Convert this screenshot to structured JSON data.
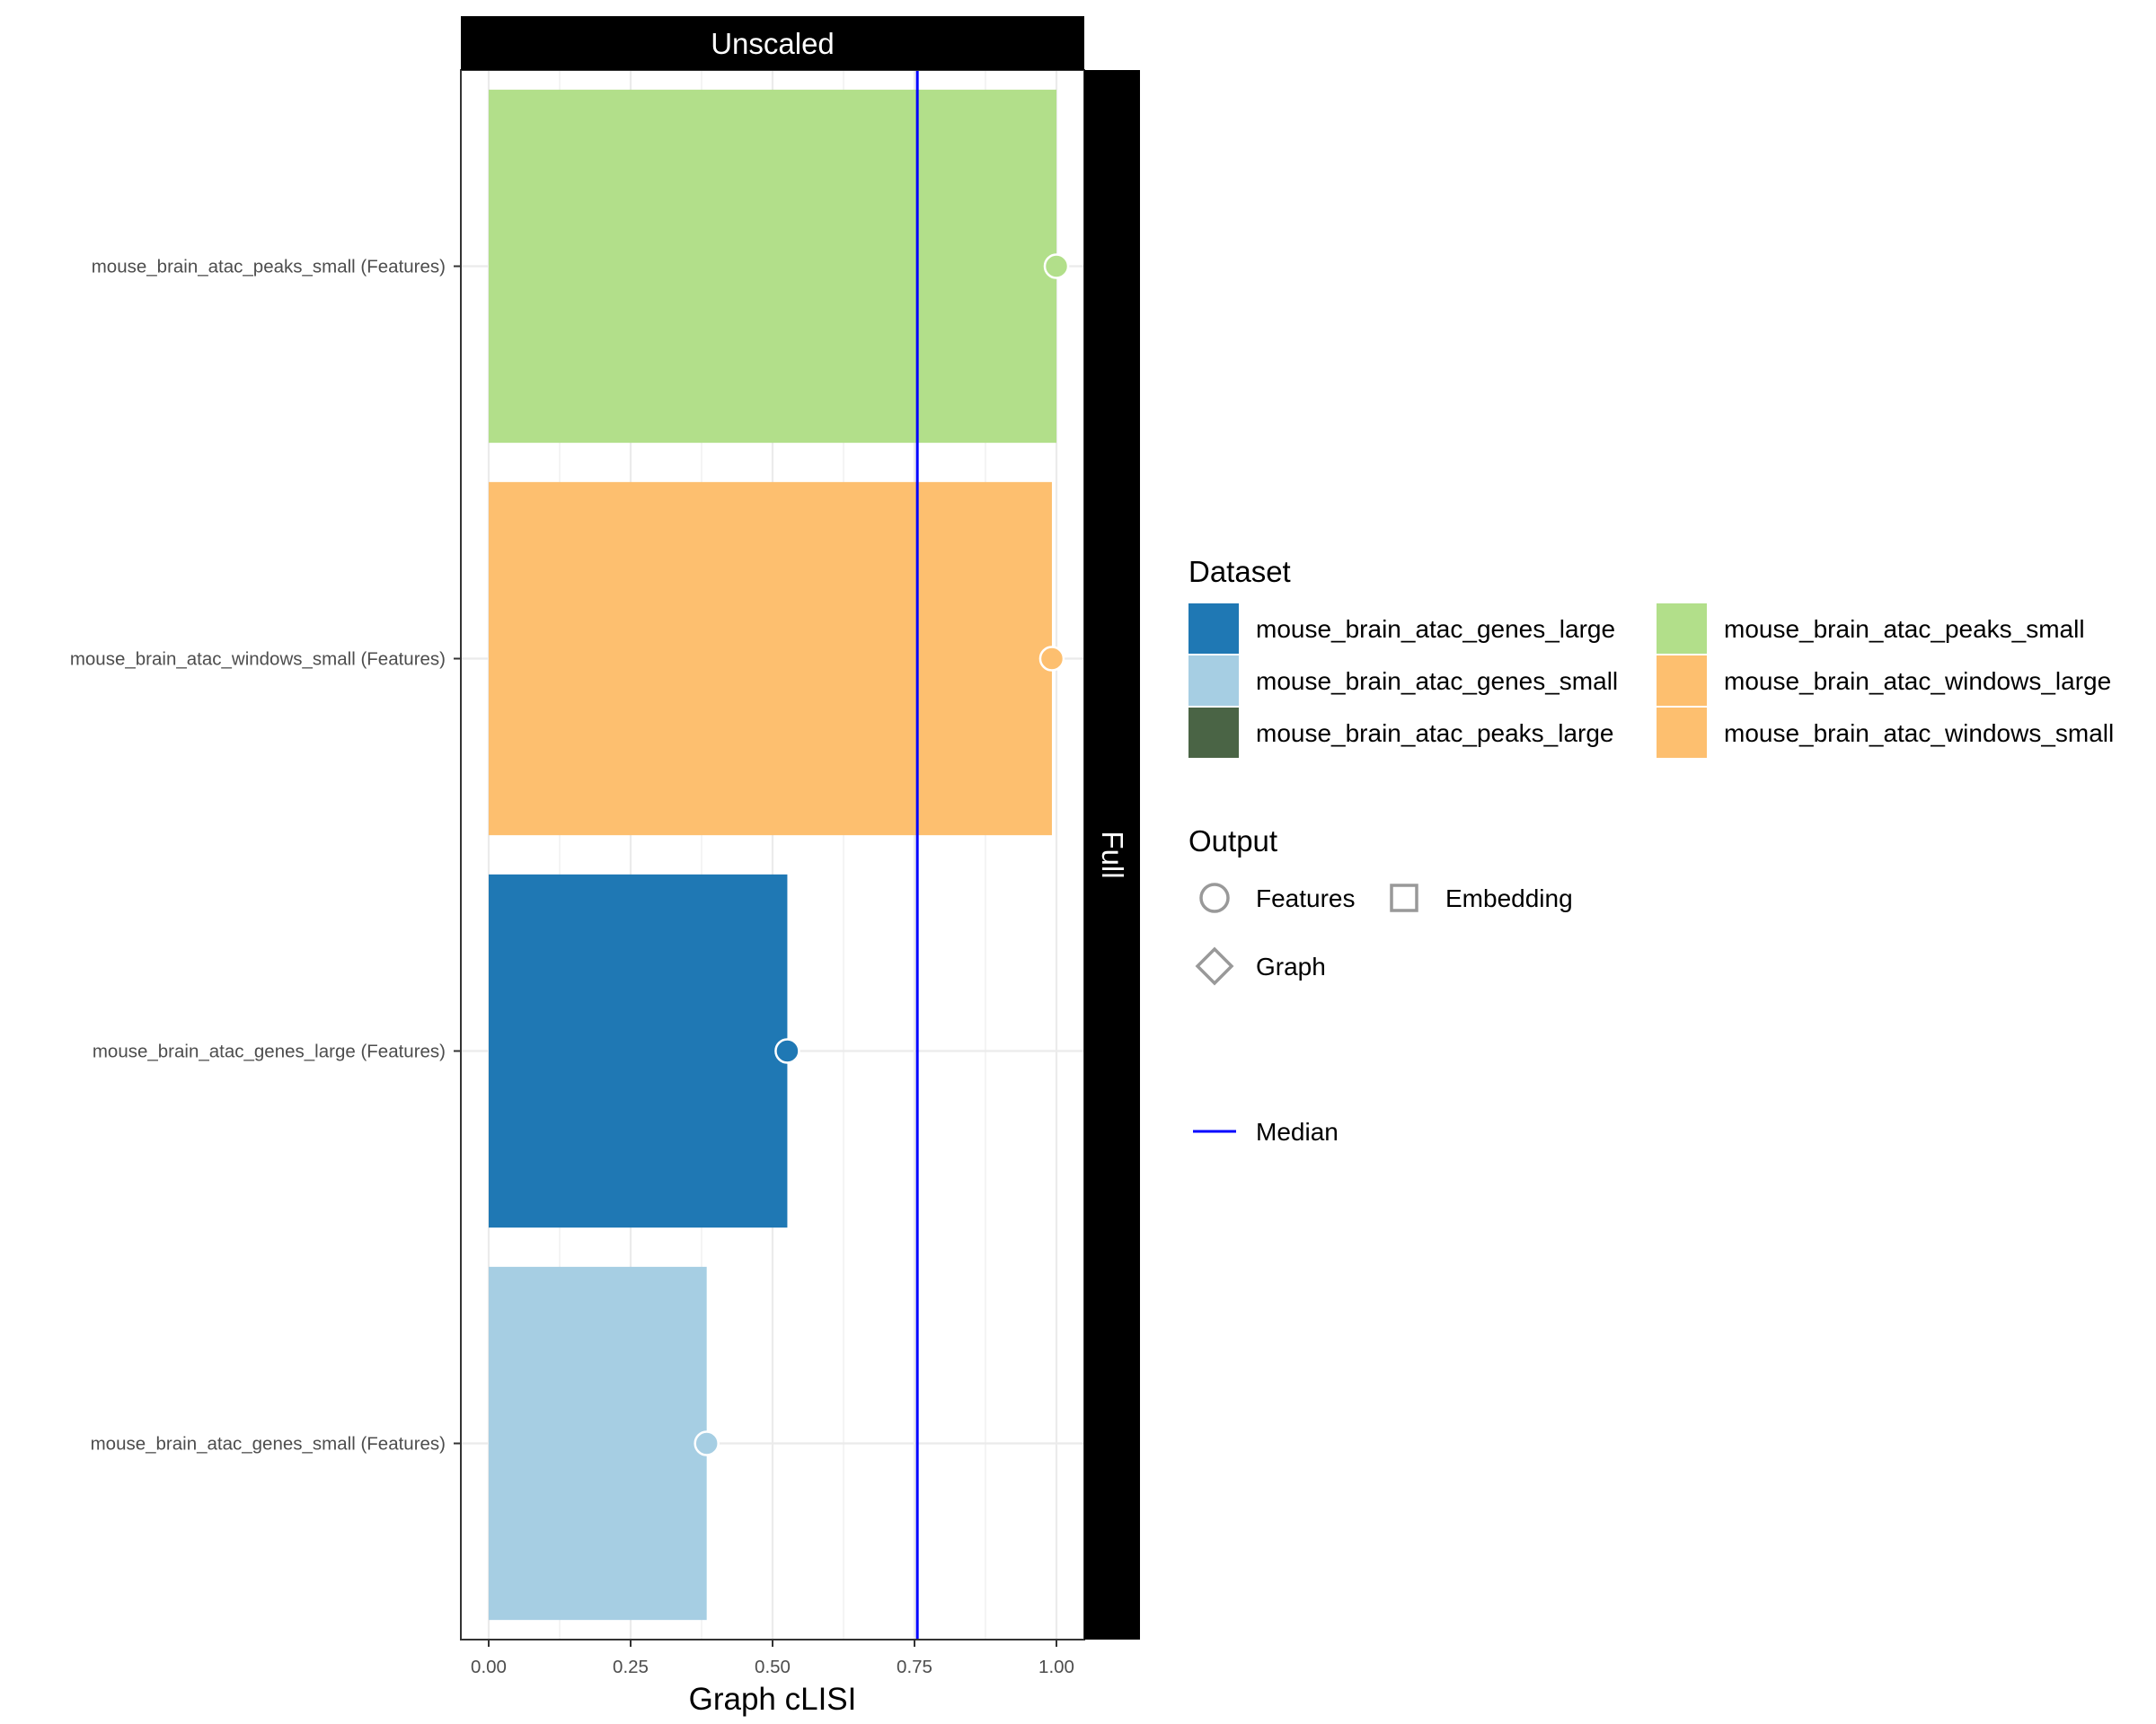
{
  "chart_data": {
    "type": "bar",
    "orientation": "horizontal",
    "panel_top_label": "Unscaled",
    "panel_right_label": "Full",
    "xlabel": "Graph cLISI",
    "ylabel": "",
    "xlim": [
      0,
      1
    ],
    "x_ticks": [
      "0.00",
      "0.25",
      "0.50",
      "0.75",
      "1.00"
    ],
    "median": 0.755,
    "categories": [
      "mouse_brain_atac_peaks_small (Features)",
      "mouse_brain_atac_windows_small (Features)",
      "mouse_brain_atac_genes_large (Features)",
      "mouse_brain_atac_genes_small (Features)"
    ],
    "bars": [
      {
        "label": "mouse_brain_atac_peaks_small (Features)",
        "dataset": "mouse_brain_atac_peaks_small",
        "output": "Features",
        "value": 1.0,
        "color": "#b2df8a"
      },
      {
        "label": "mouse_brain_atac_windows_small (Features)",
        "dataset": "mouse_brain_atac_windows_small",
        "output": "Features",
        "value": 0.992,
        "color": "#fdbf6f"
      },
      {
        "label": "mouse_brain_atac_genes_large (Features)",
        "dataset": "mouse_brain_atac_genes_large",
        "output": "Features",
        "value": 0.526,
        "color": "#1f78b4"
      },
      {
        "label": "mouse_brain_atac_genes_small (Features)",
        "dataset": "mouse_brain_atac_genes_small",
        "output": "Features",
        "value": 0.384,
        "color": "#a6cee3"
      }
    ],
    "legend": {
      "placement": "right",
      "dataset_title": "Dataset",
      "dataset_entries": [
        {
          "name": "mouse_brain_atac_genes_large",
          "color": "#1f78b4"
        },
        {
          "name": "mouse_brain_atac_genes_small",
          "color": "#a6cee3"
        },
        {
          "name": "mouse_brain_atac_peaks_large",
          "color": "#4a6445"
        },
        {
          "name": "mouse_brain_atac_peaks_small",
          "color": "#b2df8a"
        },
        {
          "name": "mouse_brain_atac_windows_large",
          "color": "#fdbf6f"
        },
        {
          "name": "mouse_brain_atac_windows_small",
          "color": "#fdbf6f"
        }
      ],
      "output_title": "Output",
      "output_entries": [
        {
          "name": "Features",
          "shape": "circle"
        },
        {
          "name": "Embedding",
          "shape": "square"
        },
        {
          "name": "Graph",
          "shape": "diamond"
        }
      ],
      "line_entry": {
        "name": "Median",
        "color": "#0000ff"
      }
    },
    "grid": true
  }
}
